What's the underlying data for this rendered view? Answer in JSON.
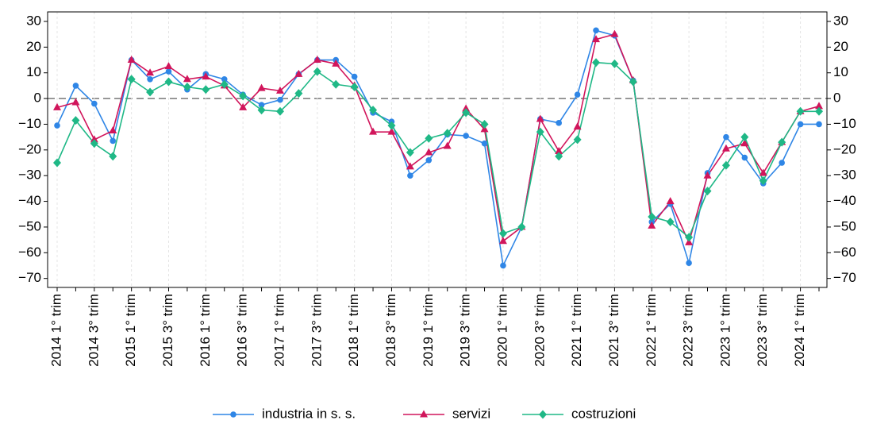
{
  "chart_data": {
    "type": "line",
    "categories": [
      "2014 1° trim",
      null,
      "2014 3° trim",
      null,
      "2015 1° trim",
      null,
      "2015 3° trim",
      null,
      "2016 1° trim",
      null,
      "2016 3° trim",
      null,
      "2017 1° trim",
      null,
      "2017 3° trim",
      null,
      "2018 1° trim",
      null,
      "2018 3° trim",
      null,
      "2019 1° trim",
      null,
      "2019 3° trim",
      null,
      "2020 1° trim",
      null,
      "2020 3° trim",
      null,
      "2021 1° trim",
      null,
      "2021 3° trim",
      null,
      "2022 1° trim",
      null,
      "2022 3° trim",
      null,
      "2023 1° trim",
      null,
      "2023 3° trim",
      null,
      "2024 1° trim",
      null
    ],
    "series": [
      {
        "name": "industria in s. s.",
        "color": "#2f86e6",
        "marker": "circle",
        "values": [
          -10.5,
          5,
          -2,
          -16.5,
          15,
          7.5,
          10.5,
          3.5,
          9.5,
          7.5,
          1.5,
          -2.5,
          -0.5,
          9.5,
          15,
          15,
          8.5,
          -5.5,
          -9,
          -30,
          -24,
          -14,
          -14.5,
          -17.5,
          -65,
          -50,
          -8,
          -9.5,
          1.5,
          26.5,
          24.5,
          7,
          -48,
          -41,
          -64,
          -29,
          -15,
          -23,
          -33,
          -25,
          -10,
          -10
        ]
      },
      {
        "name": "servizi",
        "color": "#d1155b",
        "marker": "triangle",
        "values": [
          -3.5,
          -1.5,
          -16,
          -12.5,
          15,
          10,
          12.5,
          7.5,
          8.5,
          5,
          -3.5,
          4,
          3,
          9.5,
          15,
          13.5,
          5,
          -13,
          -13,
          -26.5,
          -21,
          -18.5,
          -4,
          -12,
          -55.5,
          -50,
          -8,
          -20.5,
          -11,
          23,
          25,
          7,
          -49.5,
          -40,
          -56,
          -30,
          -19.5,
          -17.5,
          -29,
          -17,
          -5,
          -3
        ]
      },
      {
        "name": "costruzioni",
        "color": "#1fb886",
        "marker": "diamond",
        "values": [
          -25,
          -8.5,
          -17.5,
          -22.5,
          7.5,
          2.5,
          6.5,
          4.5,
          3.5,
          5.5,
          1,
          -4.5,
          -5,
          2,
          10.5,
          5.5,
          4.5,
          -4.5,
          -10.5,
          -21,
          -15.5,
          -13.5,
          -5.5,
          -10,
          -52.5,
          -50,
          -13,
          -22.5,
          -16,
          14,
          13.5,
          6.5,
          -46,
          -48,
          -54,
          -36,
          -26,
          -15,
          -32,
          -17,
          -5,
          -5
        ]
      }
    ],
    "ylim": [
      -73.5,
      33.7
    ],
    "yticks": [
      30,
      20,
      10,
      0,
      {
        "value": -10,
        "label": "−10"
      },
      {
        "value": -20,
        "label": "−20"
      },
      {
        "value": -30,
        "label": "−30"
      },
      {
        "value": -40,
        "label": "−40"
      },
      {
        "value": -50,
        "label": "−50"
      },
      {
        "value": -60,
        "label": "−60"
      },
      {
        "value": -70,
        "label": "−70"
      }
    ],
    "zero_line": true,
    "grid": true,
    "legend": "bottom"
  }
}
